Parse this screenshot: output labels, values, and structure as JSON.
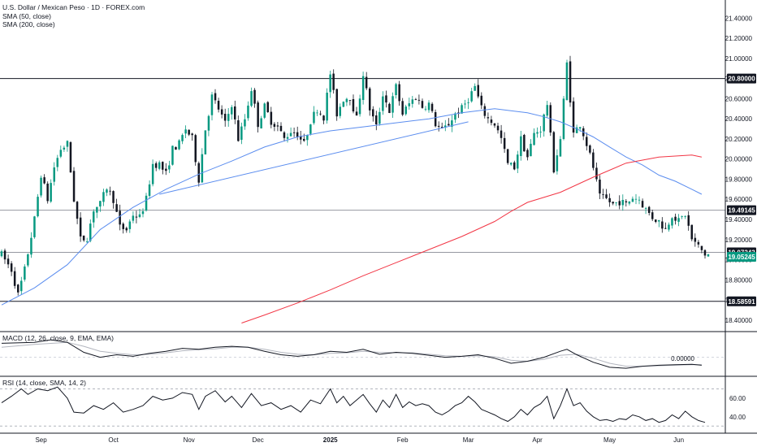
{
  "chart_data": {
    "type": "candlestick",
    "title": "U.S. Dollar / Mexican Peso · 1D · FOREX.com",
    "indicators": [
      "SMA (50, close)",
      "SMA (200, close)"
    ],
    "price_axis": {
      "ticks": [
        "21.40000",
        "21.20000",
        "21.00000",
        "20.80000",
        "20.60000",
        "20.40000",
        "20.20000",
        "20.00000",
        "19.80000",
        "19.60000",
        "19.40000",
        "19.20000",
        "19.00000",
        "18.80000",
        "18.60000",
        "18.40000"
      ],
      "range": [
        18.35,
        21.5
      ]
    },
    "x_axis": {
      "labels": [
        {
          "text": "Sep",
          "bar": 12,
          "bold": false
        },
        {
          "text": "Oct",
          "bar": 34,
          "bold": false
        },
        {
          "text": "Nov",
          "bar": 57,
          "bold": false
        },
        {
          "text": "Dec",
          "bar": 78,
          "bold": false
        },
        {
          "text": "2025",
          "bar": 100,
          "bold": true
        },
        {
          "text": "Feb",
          "bar": 122,
          "bold": false
        },
        {
          "text": "Mar",
          "bar": 142,
          "bold": false
        },
        {
          "text": "Apr",
          "bar": 163,
          "bold": false
        },
        {
          "text": "May",
          "bar": 185,
          "bold": false
        },
        {
          "text": "Jun",
          "bar": 206,
          "bold": false
        }
      ],
      "bar_count": 216
    },
    "horizontal_levels": [
      {
        "value": 20.8,
        "label": "20.80000",
        "color": "#131722",
        "style": "solid"
      },
      {
        "value": 19.49145,
        "label": "19.49145",
        "color": "#9598a1",
        "style": "solid"
      },
      {
        "value": 19.07243,
        "label": "19.07243",
        "color": "#9598a1",
        "style": "solid"
      },
      {
        "value": 18.58591,
        "label": "18.58591",
        "color": "#131722",
        "style": "solid"
      }
    ],
    "last_price": {
      "value": 19.05245,
      "label": "19.05245",
      "color": "#089981"
    },
    "trendline": {
      "from": {
        "bar": 48,
        "value": 19.65
      },
      "to": {
        "bar": 142,
        "value": 20.37
      },
      "color": "#5b8def"
    },
    "sma50": {
      "color": "#5b8def",
      "points": [
        [
          0,
          18.55
        ],
        [
          10,
          18.72
        ],
        [
          20,
          18.95
        ],
        [
          30,
          19.3
        ],
        [
          40,
          19.52
        ],
        [
          50,
          19.7
        ],
        [
          60,
          19.85
        ],
        [
          70,
          19.98
        ],
        [
          80,
          20.12
        ],
        [
          90,
          20.22
        ],
        [
          100,
          20.28
        ],
        [
          110,
          20.32
        ],
        [
          120,
          20.36
        ],
        [
          130,
          20.4
        ],
        [
          140,
          20.46
        ],
        [
          150,
          20.5
        ],
        [
          160,
          20.46
        ],
        [
          165,
          20.42
        ],
        [
          170,
          20.37
        ],
        [
          175,
          20.3
        ],
        [
          180,
          20.22
        ],
        [
          185,
          20.12
        ],
        [
          190,
          20.02
        ],
        [
          195,
          19.94
        ],
        [
          200,
          19.84
        ],
        [
          205,
          19.78
        ],
        [
          210,
          19.7
        ],
        [
          213,
          19.65
        ]
      ]
    },
    "sma200": {
      "color": "#f23645",
      "points": [
        [
          73,
          18.37
        ],
        [
          80,
          18.45
        ],
        [
          90,
          18.57
        ],
        [
          100,
          18.7
        ],
        [
          110,
          18.84
        ],
        [
          120,
          18.97
        ],
        [
          130,
          19.1
        ],
        [
          140,
          19.23
        ],
        [
          150,
          19.38
        ],
        [
          155,
          19.48
        ],
        [
          160,
          19.57
        ],
        [
          170,
          19.67
        ],
        [
          180,
          19.82
        ],
        [
          190,
          19.96
        ],
        [
          200,
          20.02
        ],
        [
          210,
          20.04
        ],
        [
          213,
          20.02
        ]
      ]
    },
    "anchors": [
      [
        0,
        19.05
      ],
      [
        3,
        18.9
      ],
      [
        5,
        18.65
      ],
      [
        7,
        18.9
      ],
      [
        10,
        19.4
      ],
      [
        12,
        19.85
      ],
      [
        14,
        19.6
      ],
      [
        16,
        19.92
      ],
      [
        18,
        20.1
      ],
      [
        20,
        20.15
      ],
      [
        22,
        19.6
      ],
      [
        24,
        19.2
      ],
      [
        26,
        19.22
      ],
      [
        28,
        19.5
      ],
      [
        30,
        19.55
      ],
      [
        32,
        19.72
      ],
      [
        34,
        19.6
      ],
      [
        36,
        19.32
      ],
      [
        38,
        19.3
      ],
      [
        40,
        19.45
      ],
      [
        42,
        19.42
      ],
      [
        44,
        19.6
      ],
      [
        46,
        19.95
      ],
      [
        48,
        19.95
      ],
      [
        50,
        19.85
      ],
      [
        52,
        20.1
      ],
      [
        54,
        20.15
      ],
      [
        56,
        20.3
      ],
      [
        58,
        20.2
      ],
      [
        60,
        19.8
      ],
      [
        62,
        20.3
      ],
      [
        64,
        20.62
      ],
      [
        66,
        20.5
      ],
      [
        68,
        20.35
      ],
      [
        70,
        20.55
      ],
      [
        72,
        20.2
      ],
      [
        74,
        20.4
      ],
      [
        76,
        20.7
      ],
      [
        78,
        20.35
      ],
      [
        80,
        20.52
      ],
      [
        82,
        20.38
      ],
      [
        84,
        20.32
      ],
      [
        86,
        20.2
      ],
      [
        88,
        20.28
      ],
      [
        90,
        20.25
      ],
      [
        92,
        20.15
      ],
      [
        94,
        20.38
      ],
      [
        96,
        20.5
      ],
      [
        98,
        20.42
      ],
      [
        100,
        20.85
      ],
      [
        102,
        20.45
      ],
      [
        104,
        20.6
      ],
      [
        106,
        20.62
      ],
      [
        108,
        20.4
      ],
      [
        110,
        20.85
      ],
      [
        112,
        20.5
      ],
      [
        114,
        20.32
      ],
      [
        116,
        20.65
      ],
      [
        118,
        20.48
      ],
      [
        120,
        20.72
      ],
      [
        122,
        20.45
      ],
      [
        124,
        20.55
      ],
      [
        126,
        20.62
      ],
      [
        128,
        20.52
      ],
      [
        130,
        20.55
      ],
      [
        132,
        20.35
      ],
      [
        134,
        20.28
      ],
      [
        136,
        20.35
      ],
      [
        138,
        20.45
      ],
      [
        140,
        20.5
      ],
      [
        142,
        20.6
      ],
      [
        144,
        20.72
      ],
      [
        146,
        20.5
      ],
      [
        148,
        20.4
      ],
      [
        150,
        20.35
      ],
      [
        152,
        20.2
      ],
      [
        154,
        19.95
      ],
      [
        156,
        19.92
      ],
      [
        158,
        20.2
      ],
      [
        160,
        20.02
      ],
      [
        162,
        20.25
      ],
      [
        164,
        20.3
      ],
      [
        166,
        20.55
      ],
      [
        168,
        19.9
      ],
      [
        170,
        20.2
      ],
      [
        172,
        20.95
      ],
      [
        174,
        20.25
      ],
      [
        176,
        20.35
      ],
      [
        178,
        20.15
      ],
      [
        180,
        19.92
      ],
      [
        182,
        19.62
      ],
      [
        184,
        19.6
      ],
      [
        186,
        19.55
      ],
      [
        188,
        19.58
      ],
      [
        190,
        19.55
      ],
      [
        192,
        19.62
      ],
      [
        194,
        19.6
      ],
      [
        196,
        19.5
      ],
      [
        198,
        19.42
      ],
      [
        200,
        19.38
      ],
      [
        202,
        19.3
      ],
      [
        204,
        19.45
      ],
      [
        206,
        19.38
      ],
      [
        208,
        19.45
      ],
      [
        210,
        19.2
      ],
      [
        212,
        19.13
      ],
      [
        214,
        19.05
      ],
      [
        215,
        19.05
      ]
    ],
    "macd": {
      "label": "MACD (12, 26, close, 9, EMA, EMA)",
      "tick": "0.00000",
      "macd_color": "#131722",
      "signal_color": "#b2b5be",
      "macd": [
        [
          0,
          0.28
        ],
        [
          10,
          0.3
        ],
        [
          15,
          0.35
        ],
        [
          20,
          0.3
        ],
        [
          25,
          0.1
        ],
        [
          30,
          0.0
        ],
        [
          35,
          0.05
        ],
        [
          40,
          0.02
        ],
        [
          45,
          0.08
        ],
        [
          50,
          0.12
        ],
        [
          55,
          0.18
        ],
        [
          60,
          0.16
        ],
        [
          65,
          0.2
        ],
        [
          70,
          0.22
        ],
        [
          75,
          0.2
        ],
        [
          80,
          0.12
        ],
        [
          85,
          0.05
        ],
        [
          90,
          0.02
        ],
        [
          95,
          0.05
        ],
        [
          100,
          0.12
        ],
        [
          105,
          0.1
        ],
        [
          110,
          0.16
        ],
        [
          115,
          0.06
        ],
        [
          120,
          0.1
        ],
        [
          125,
          0.08
        ],
        [
          130,
          0.04
        ],
        [
          135,
          0.0
        ],
        [
          140,
          0.02
        ],
        [
          145,
          0.05
        ],
        [
          150,
          -0.02
        ],
        [
          155,
          -0.12
        ],
        [
          160,
          -0.08
        ],
        [
          165,
          0.0
        ],
        [
          170,
          0.12
        ],
        [
          172,
          0.16
        ],
        [
          175,
          0.05
        ],
        [
          180,
          -0.1
        ],
        [
          185,
          -0.2
        ],
        [
          190,
          -0.22
        ],
        [
          195,
          -0.18
        ],
        [
          200,
          -0.16
        ],
        [
          205,
          -0.15
        ],
        [
          210,
          -0.14
        ],
        [
          213,
          -0.16
        ]
      ],
      "signal": [
        [
          0,
          0.2
        ],
        [
          10,
          0.26
        ],
        [
          20,
          0.3
        ],
        [
          25,
          0.22
        ],
        [
          30,
          0.12
        ],
        [
          35,
          0.08
        ],
        [
          40,
          0.05
        ],
        [
          45,
          0.06
        ],
        [
          50,
          0.09
        ],
        [
          55,
          0.13
        ],
        [
          60,
          0.15
        ],
        [
          65,
          0.17
        ],
        [
          70,
          0.2
        ],
        [
          75,
          0.2
        ],
        [
          80,
          0.16
        ],
        [
          85,
          0.1
        ],
        [
          90,
          0.06
        ],
        [
          95,
          0.05
        ],
        [
          100,
          0.08
        ],
        [
          105,
          0.09
        ],
        [
          110,
          0.12
        ],
        [
          115,
          0.1
        ],
        [
          120,
          0.09
        ],
        [
          125,
          0.09
        ],
        [
          130,
          0.06
        ],
        [
          135,
          0.03
        ],
        [
          140,
          0.02
        ],
        [
          145,
          0.03
        ],
        [
          150,
          0.01
        ],
        [
          155,
          -0.06
        ],
        [
          160,
          -0.08
        ],
        [
          165,
          -0.04
        ],
        [
          170,
          0.04
        ],
        [
          175,
          0.06
        ],
        [
          180,
          -0.02
        ],
        [
          185,
          -0.12
        ],
        [
          190,
          -0.18
        ],
        [
          195,
          -0.18
        ],
        [
          200,
          -0.17
        ],
        [
          205,
          -0.16
        ],
        [
          210,
          -0.15
        ],
        [
          213,
          -0.15
        ]
      ],
      "range": [
        -0.3,
        0.45
      ]
    },
    "rsi": {
      "label": "RSI (14, close, SMA, 14, 2)",
      "ticks": [
        "60.00",
        "40.00"
      ],
      "color": "#131722",
      "range": [
        25,
        80
      ],
      "bands": [
        70,
        30
      ],
      "values": [
        [
          0,
          55
        ],
        [
          3,
          62
        ],
        [
          6,
          70
        ],
        [
          8,
          64
        ],
        [
          11,
          70
        ],
        [
          14,
          68
        ],
        [
          17,
          72
        ],
        [
          20,
          60
        ],
        [
          22,
          45
        ],
        [
          25,
          44
        ],
        [
          28,
          52
        ],
        [
          31,
          48
        ],
        [
          34,
          55
        ],
        [
          37,
          45
        ],
        [
          40,
          48
        ],
        [
          43,
          52
        ],
        [
          46,
          62
        ],
        [
          49,
          58
        ],
        [
          52,
          60
        ],
        [
          55,
          66
        ],
        [
          58,
          64
        ],
        [
          60,
          48
        ],
        [
          62,
          62
        ],
        [
          65,
          68
        ],
        [
          68,
          56
        ],
        [
          70,
          62
        ],
        [
          73,
          50
        ],
        [
          76,
          65
        ],
        [
          79,
          52
        ],
        [
          82,
          55
        ],
        [
          85,
          48
        ],
        [
          88,
          52
        ],
        [
          91,
          45
        ],
        [
          94,
          58
        ],
        [
          97,
          54
        ],
        [
          100,
          70
        ],
        [
          102,
          55
        ],
        [
          104,
          62
        ],
        [
          106,
          52
        ],
        [
          108,
          58
        ],
        [
          110,
          64
        ],
        [
          112,
          54
        ],
        [
          114,
          45
        ],
        [
          116,
          58
        ],
        [
          118,
          50
        ],
        [
          120,
          64
        ],
        [
          122,
          50
        ],
        [
          124,
          56
        ],
        [
          126,
          52
        ],
        [
          128,
          54
        ],
        [
          130,
          52
        ],
        [
          132,
          45
        ],
        [
          134,
          42
        ],
        [
          136,
          46
        ],
        [
          138,
          52
        ],
        [
          140,
          55
        ],
        [
          142,
          62
        ],
        [
          144,
          56
        ],
        [
          146,
          48
        ],
        [
          148,
          45
        ],
        [
          150,
          42
        ],
        [
          152,
          38
        ],
        [
          154,
          35
        ],
        [
          156,
          40
        ],
        [
          158,
          48
        ],
        [
          160,
          42
        ],
        [
          162,
          50
        ],
        [
          164,
          54
        ],
        [
          166,
          62
        ],
        [
          168,
          38
        ],
        [
          170,
          52
        ],
        [
          172,
          70
        ],
        [
          174,
          52
        ],
        [
          176,
          55
        ],
        [
          178,
          46
        ],
        [
          180,
          40
        ],
        [
          182,
          36
        ],
        [
          184,
          37
        ],
        [
          186,
          35
        ],
        [
          188,
          38
        ],
        [
          190,
          37
        ],
        [
          192,
          42
        ],
        [
          194,
          40
        ],
        [
          196,
          36
        ],
        [
          198,
          38
        ],
        [
          200,
          34
        ],
        [
          202,
          36
        ],
        [
          204,
          42
        ],
        [
          206,
          38
        ],
        [
          208,
          46
        ],
        [
          210,
          40
        ],
        [
          212,
          36
        ],
        [
          214,
          34
        ]
      ]
    }
  }
}
